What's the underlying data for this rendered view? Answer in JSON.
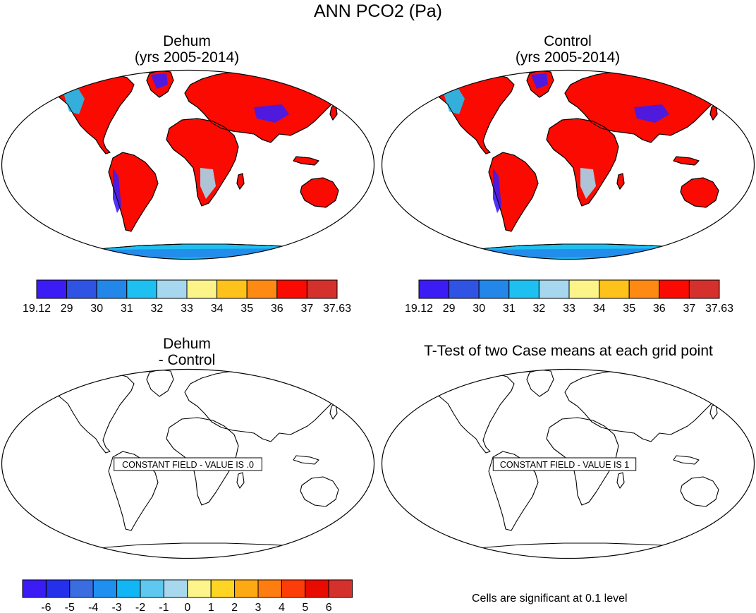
{
  "page": {
    "title": "ANN PCO2 (Pa)",
    "note": "Cells are significant at 0.1 level"
  },
  "panels": [
    {
      "id": "dehum",
      "title_line1": "Dehum",
      "title_line2": "(yrs 2005-2014)",
      "field": "filled"
    },
    {
      "id": "control",
      "title_line1": "Control",
      "title_line2": "(yrs 2005-2014)",
      "field": "filled"
    },
    {
      "id": "diff",
      "title_line1": "Dehum",
      "title_line2": "- Control",
      "field": "constant",
      "constant_label": "CONSTANT FIELD - VALUE IS .0"
    },
    {
      "id": "ttest",
      "title_line1": "T-Test of two Case means at each grid point",
      "title_line2": "",
      "field": "constant",
      "constant_label": "CONSTANT FIELD - VALUE IS 1"
    }
  ],
  "colorbars": {
    "abs": {
      "colors": [
        "#3c1cf5",
        "#2f54e3",
        "#2387ea",
        "#1ec0f2",
        "#a6d7ee",
        "#fdf489",
        "#fec21a",
        "#fe8a14",
        "#fa0a00",
        "#d5312c"
      ],
      "labels": [
        "19.12",
        "29",
        "30",
        "31",
        "32",
        "33",
        "34",
        "35",
        "36",
        "37",
        "37.63"
      ]
    },
    "diff": {
      "colors": [
        "#3c1cf5",
        "#2430ea",
        "#3a6ee0",
        "#1f8ff0",
        "#12b6f4",
        "#5ec8f0",
        "#a8d8ee",
        "#fef58a",
        "#fed524",
        "#fdaa12",
        "#fd7d10",
        "#fc3d08",
        "#e80b00",
        "#d5312c"
      ],
      "labels": [
        "-6",
        "-5",
        "-4",
        "-3",
        "-2",
        "-1",
        "0",
        "1",
        "2",
        "3",
        "4",
        "5",
        "6"
      ]
    }
  }
}
